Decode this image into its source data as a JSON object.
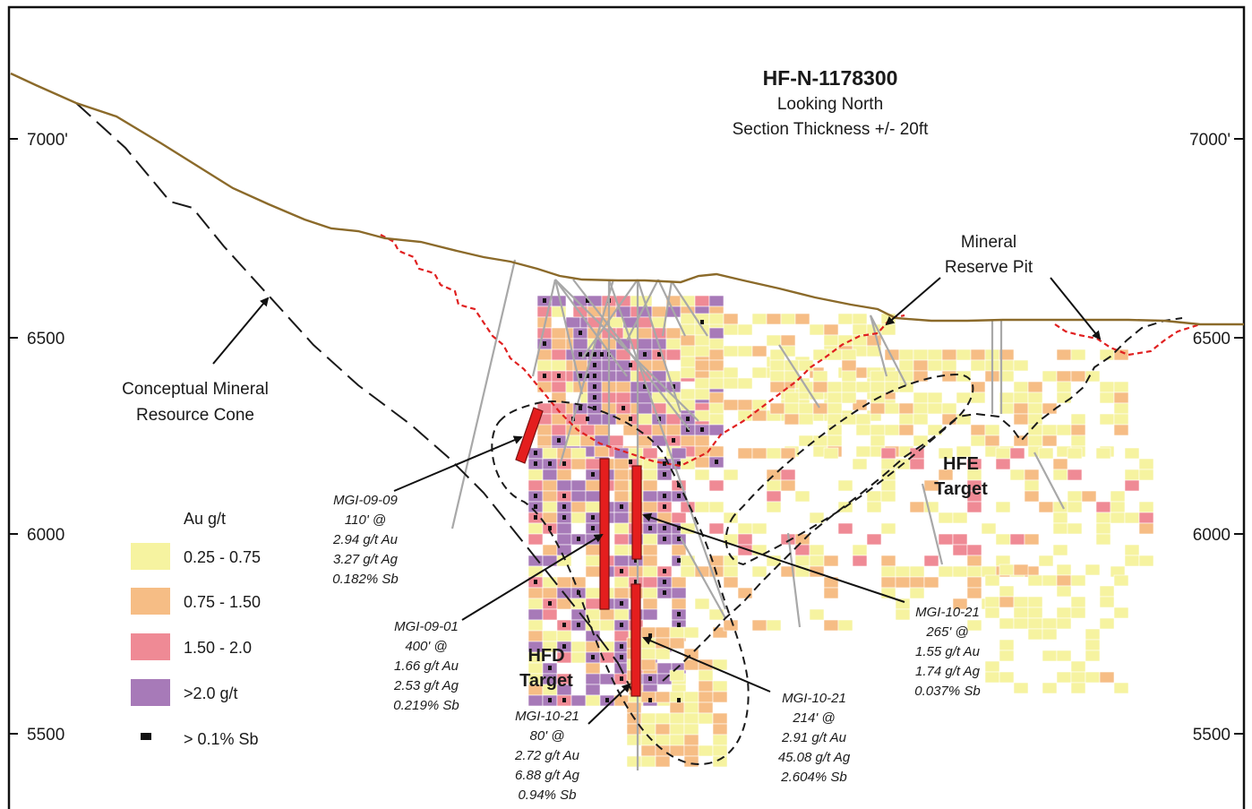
{
  "header": {
    "title": "HF-N-1178300",
    "subtitle_1": "Looking North",
    "subtitle_2": "Section Thickness +/- 20ft"
  },
  "elevations": {
    "left": [
      "7000'",
      "6500",
      "6000",
      "5500"
    ],
    "right": [
      "7000'",
      "6500",
      "6000",
      "5500"
    ]
  },
  "labels": {
    "cone_1": "Conceptual Mineral",
    "cone_2": "Resource Cone",
    "pit_1": "Mineral",
    "pit_2": "Reserve Pit",
    "hfe_1": "HFE",
    "hfe_2": "Target",
    "hfd_1": "HFD",
    "hfd_2": "Target"
  },
  "intercepts": [
    {
      "hole": "MGI-09-09",
      "length": "110' @",
      "au": "2.94 g/t Au",
      "ag": "3.27 g/t Ag",
      "sb": "0.182% Sb"
    },
    {
      "hole": "MGI-09-01",
      "length": "400' @",
      "au": "1.66 g/t Au",
      "ag": "2.53 g/t Ag",
      "sb": "0.219% Sb"
    },
    {
      "hole": "MGI-10-21",
      "length": "80' @",
      "au": "2.72 g/t Au",
      "ag": "6.88 g/t Ag",
      "sb": "0.94% Sb"
    },
    {
      "hole": "MGI-10-21",
      "length": "214' @",
      "au": "2.91 g/t Au",
      "ag": "45.08 g/t Ag",
      "sb": "2.604% Sb"
    },
    {
      "hole": "MGI-10-21",
      "length": "265' @",
      "au": "1.55 g/t Au",
      "ag": "1.74 g/t Ag",
      "sb": "0.037% Sb"
    }
  ],
  "legend": {
    "title": "Au g/t",
    "items": [
      {
        "label": "0.25 - 0.75",
        "color": "#f6f3a0"
      },
      {
        "label": "0.75 - 1.50",
        "color": "#f6bd85"
      },
      {
        "label": "1.50 - 2.0",
        "color": "#ef8a95"
      },
      {
        "label": ">2.0 g/t",
        "color": "#a77ab8"
      },
      {
        "label": "> 0.1% Sb",
        "color": "#111111"
      }
    ]
  },
  "colors": {
    "topography": "#8b6a2a",
    "pit": "#e02020",
    "cone": "#1a1a1a",
    "drill_hole": "#a8a8a8",
    "intercept": "#e41e1e"
  }
}
